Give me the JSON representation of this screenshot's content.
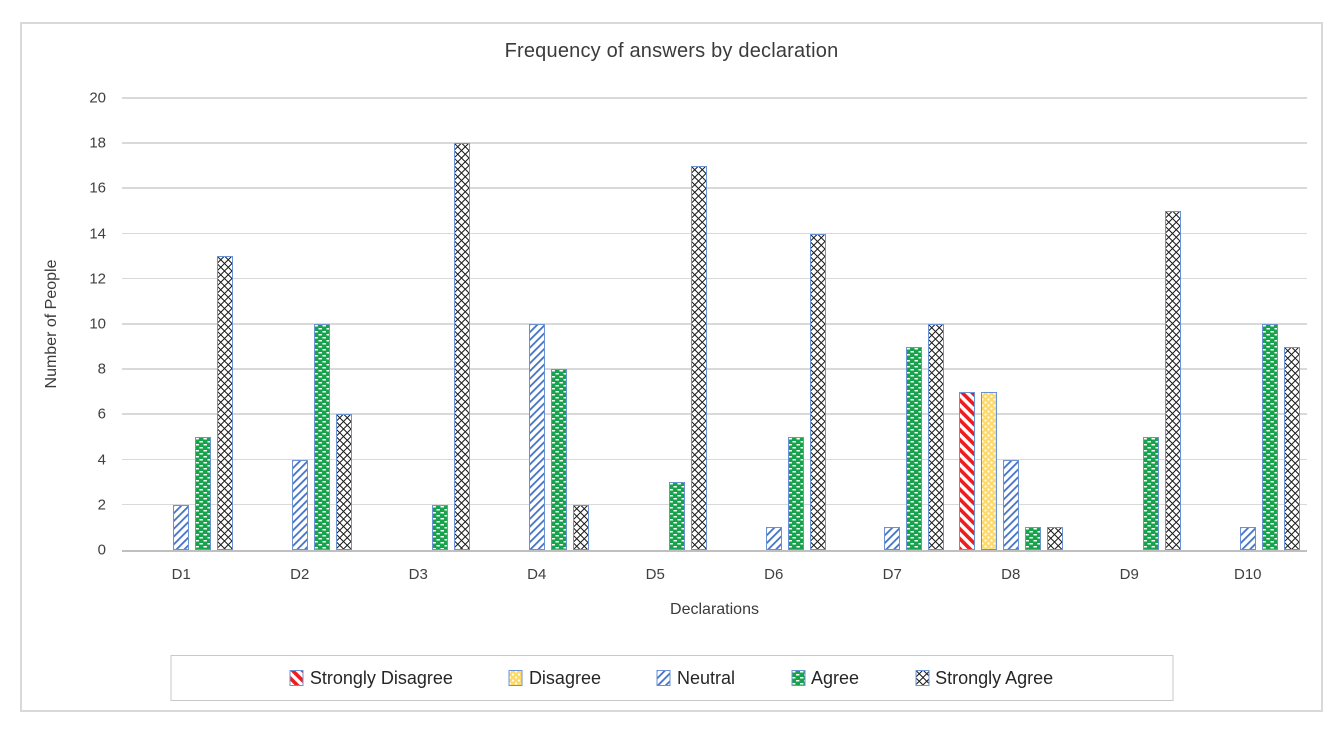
{
  "chart_data": {
    "type": "bar",
    "title": "Frequency of answers by declaration",
    "xlabel": "Declarations",
    "ylabel": "Number of People",
    "ylim": [
      0,
      20
    ],
    "yticks": [
      0,
      2,
      4,
      6,
      8,
      10,
      12,
      14,
      16,
      18,
      20
    ],
    "grid": true,
    "legend_position": "bottom",
    "categories": [
      "D1",
      "D2",
      "D3",
      "D4",
      "D5",
      "D6",
      "D7",
      "D8",
      "D9",
      "D10"
    ],
    "series": [
      {
        "name": "Strongly Disagree",
        "pattern": "diagonal-stripes-down",
        "fg": "#ee1c1c",
        "bg": "#ffffff",
        "values": [
          0,
          0,
          0,
          0,
          0,
          0,
          0,
          7,
          0,
          0
        ]
      },
      {
        "name": "Disagree",
        "pattern": "dot-grid",
        "fg": "#ffffff",
        "bg": "#ffd966",
        "values": [
          0,
          0,
          0,
          0,
          0,
          0,
          0,
          7,
          0,
          0
        ]
      },
      {
        "name": "Neutral",
        "pattern": "diagonal-stripes-up",
        "fg": "#4472c4",
        "bg": "#ffffff",
        "values": [
          2,
          4,
          0,
          10,
          0,
          1,
          1,
          4,
          0,
          1
        ]
      },
      {
        "name": "Agree",
        "pattern": "brick-dashes",
        "fg": "#ffffff",
        "bg": "#17a24c",
        "values": [
          5,
          10,
          2,
          8,
          3,
          5,
          9,
          1,
          5,
          10
        ]
      },
      {
        "name": "Strongly Agree",
        "pattern": "diagonal-crosshatch",
        "fg": "#1a1a1a",
        "bg": "#ffffff",
        "values": [
          13,
          6,
          18,
          2,
          17,
          14,
          10,
          1,
          15,
          9
        ]
      }
    ]
  },
  "colors": {
    "bar_border": "#6a92d4",
    "gridline": "#d9d9d9",
    "axis_line": "#bfbfbf",
    "frame_border": "#d9d9d9",
    "legend_border": "#c9c9c9",
    "text": "#404040"
  }
}
